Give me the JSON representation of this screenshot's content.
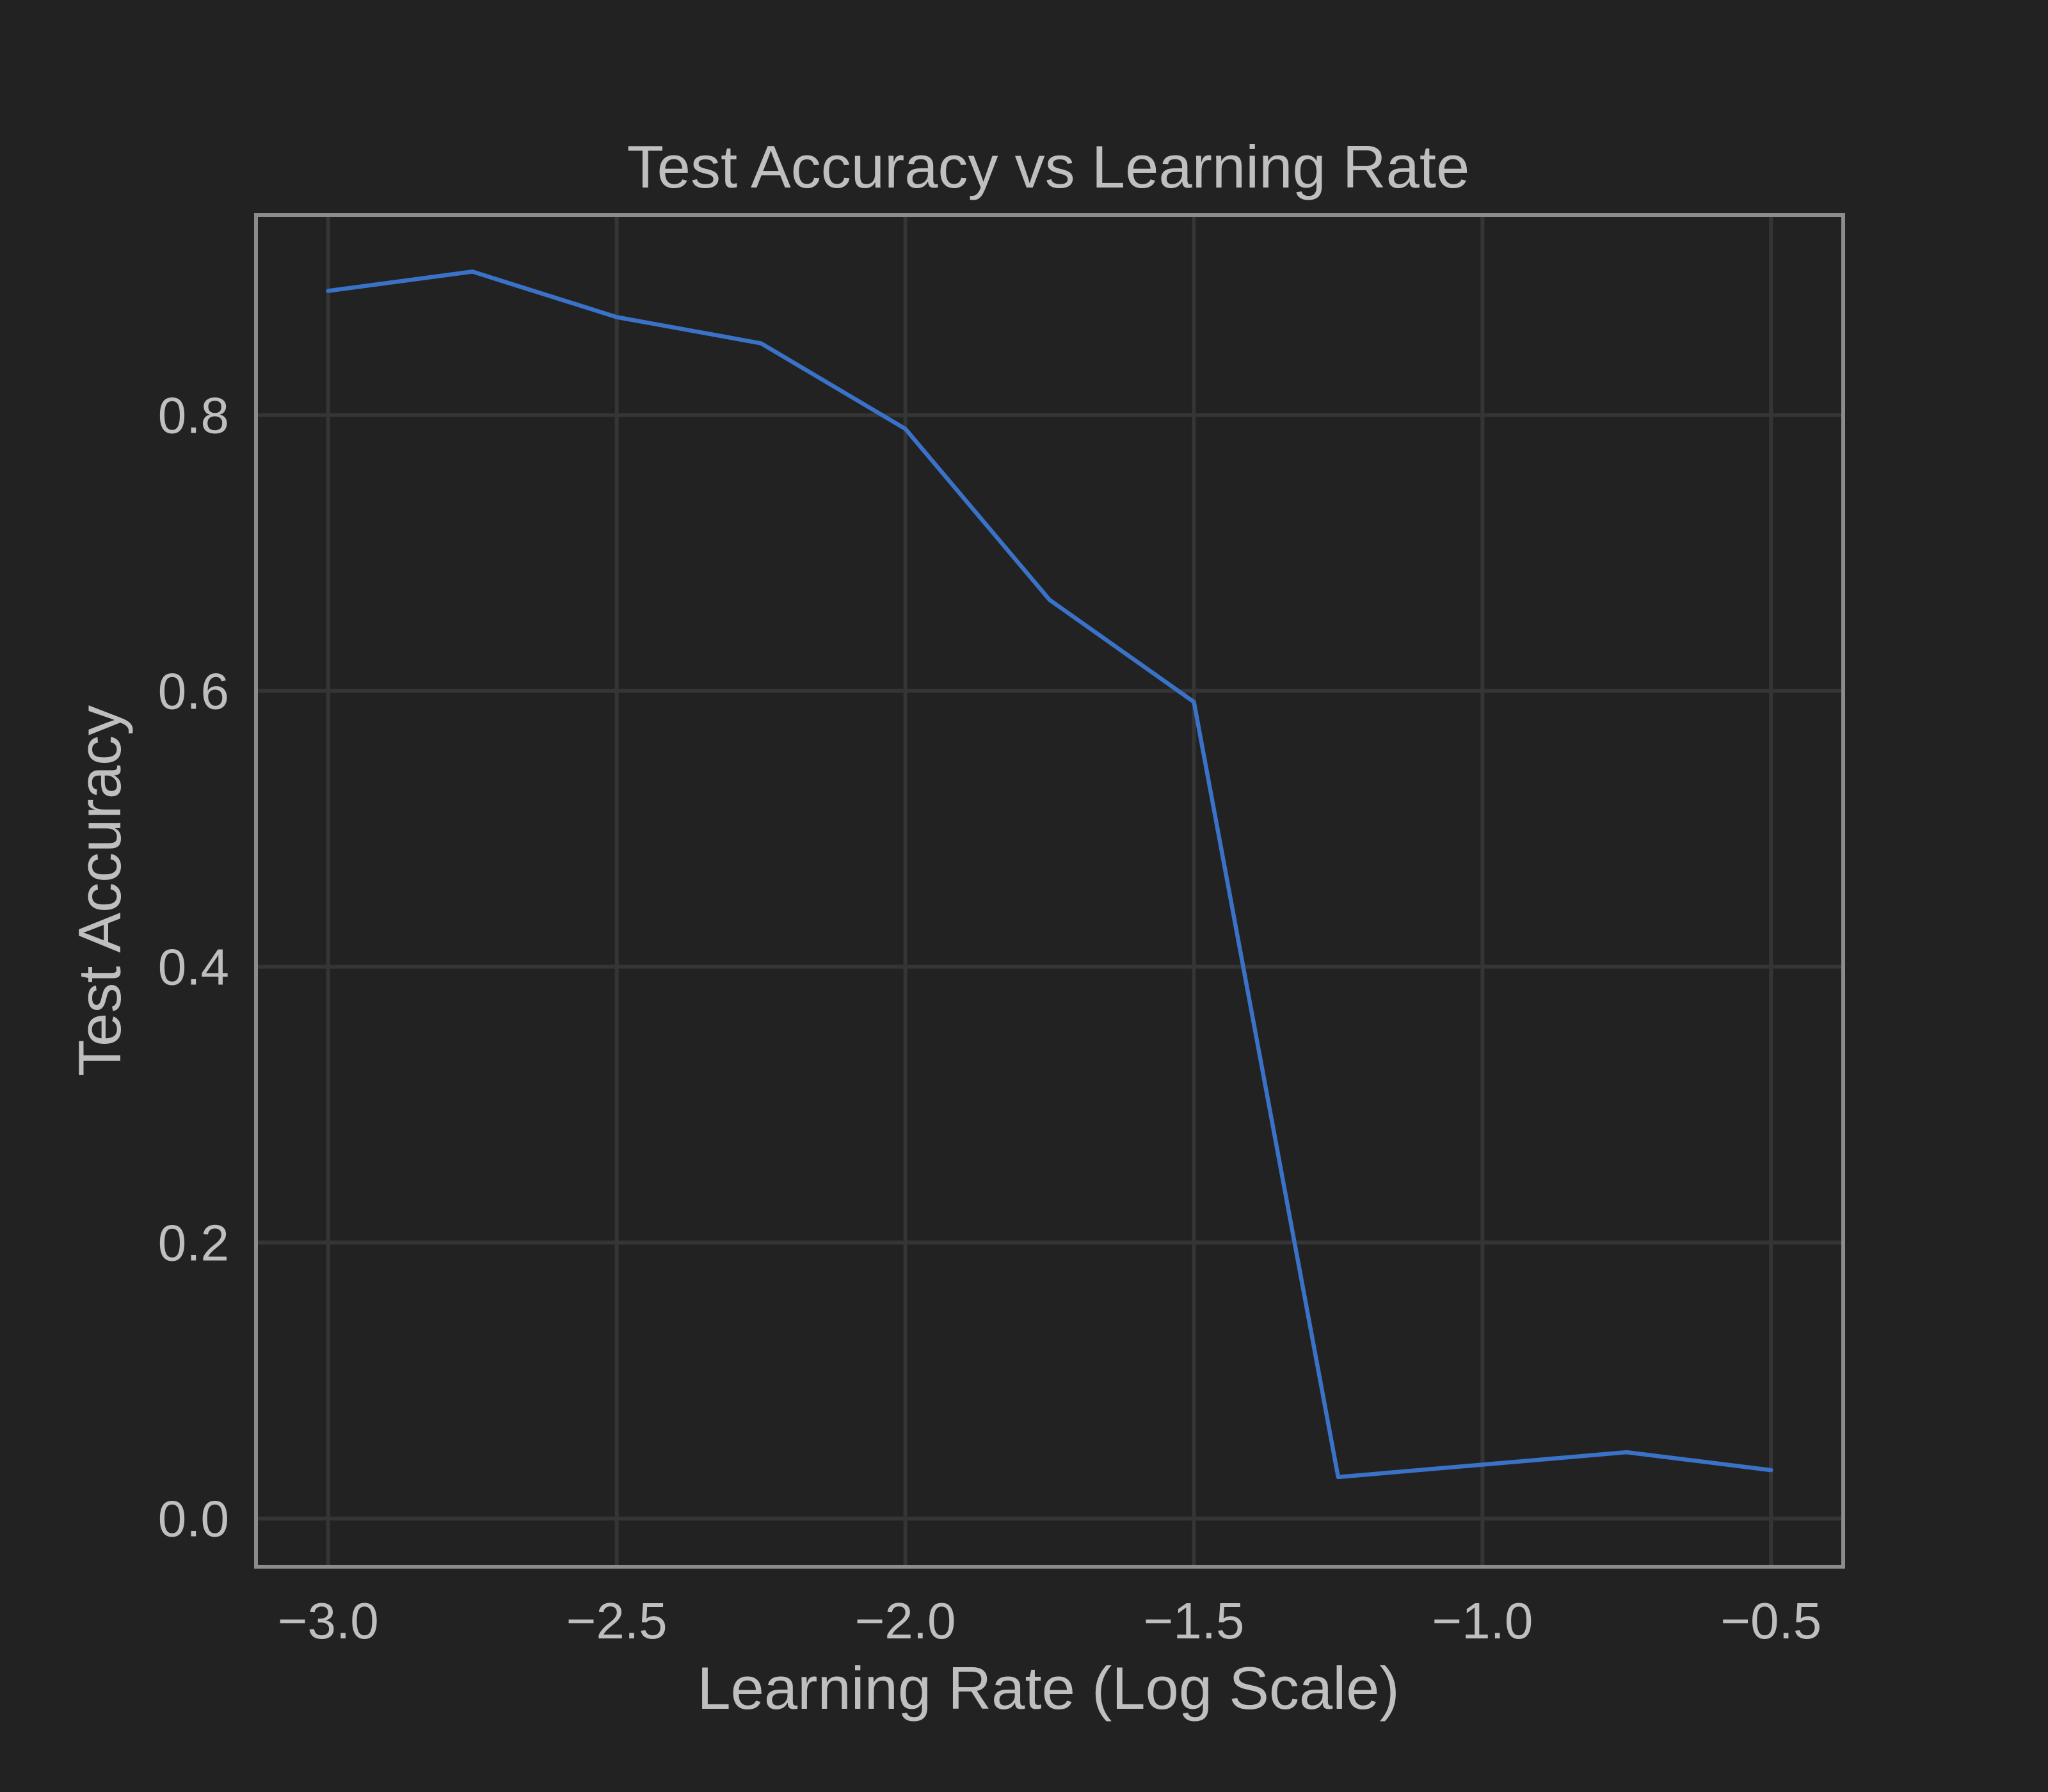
{
  "chart_data": {
    "type": "line",
    "title": "Test Accuracy vs Learning Rate",
    "xlabel": "Learning Rate (Log Scale)",
    "ylabel": "Test Accuracy",
    "xlim": [
      -3.125,
      -0.375
    ],
    "ylim": [
      -0.035,
      0.945
    ],
    "xticks": [
      -3.0,
      -2.5,
      -2.0,
      -1.5,
      -1.0,
      -0.5
    ],
    "xtick_labels": [
      "−3.0",
      "−2.5",
      "−2.0",
      "−1.5",
      "−1.0",
      "−0.5"
    ],
    "yticks": [
      0.0,
      0.2,
      0.4,
      0.6,
      0.8
    ],
    "ytick_labels": [
      "0.0",
      "0.2",
      "0.4",
      "0.6",
      "0.8"
    ],
    "grid": true,
    "series": [
      {
        "color": "#3a72c8",
        "x": [
          -3.0,
          -2.75,
          -2.5,
          -2.25,
          -2.0,
          -1.75,
          -1.5,
          -1.25,
          -1.0,
          -0.75,
          -0.5
        ],
        "values": [
          0.89,
          0.904,
          0.871,
          0.852,
          0.79,
          0.666,
          0.592,
          0.03,
          0.039,
          0.048,
          0.035
        ]
      }
    ],
    "colors": {
      "background": "#222222",
      "grid": "#353535",
      "frame": "#8c8c8c",
      "text": "#bfbfbf"
    }
  }
}
